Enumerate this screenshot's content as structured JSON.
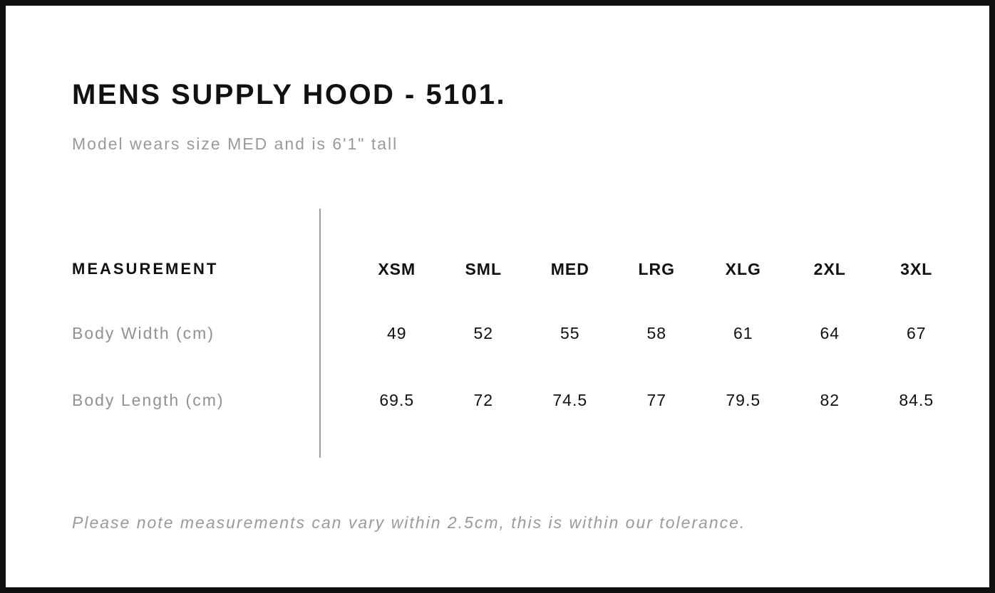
{
  "header": {
    "title": "MENS SUPPLY HOOD - 5101.",
    "subtitle": "Model wears size MED and is 6'1\" tall"
  },
  "table": {
    "measurement_header": "MEASUREMENT",
    "sizes": [
      "XSM",
      "SML",
      "MED",
      "LRG",
      "XLG",
      "2XL",
      "3XL"
    ],
    "rows": [
      {
        "label": "Body Width (cm)",
        "values": [
          "49",
          "52",
          "55",
          "58",
          "61",
          "64",
          "67"
        ]
      },
      {
        "label": "Body Length (cm)",
        "values": [
          "69.5",
          "72",
          "74.5",
          "77",
          "79.5",
          "82",
          "84.5"
        ]
      }
    ]
  },
  "footnote": "Please note measurements can vary within 2.5cm, this is within our tolerance.",
  "colors": {
    "text_primary": "#111111",
    "text_secondary": "#999999",
    "divider": "#9e9e9e",
    "frame_border": "#101010",
    "background": "#ffffff"
  },
  "chart_data": {
    "type": "table",
    "title": "MENS SUPPLY HOOD - 5101.",
    "columns": [
      "MEASUREMENT",
      "XSM",
      "SML",
      "MED",
      "LRG",
      "XLG",
      "2XL",
      "3XL"
    ],
    "rows": [
      [
        "Body Width (cm)",
        49,
        52,
        55,
        58,
        61,
        64,
        67
      ],
      [
        "Body Length (cm)",
        69.5,
        72,
        74.5,
        77,
        79.5,
        82,
        84.5
      ]
    ]
  }
}
